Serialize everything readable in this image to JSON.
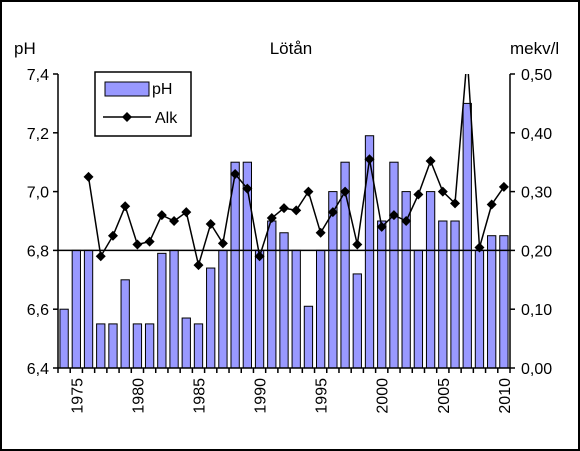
{
  "chart_data": {
    "type": "bar",
    "title": "Lötån",
    "ylabel_left": "pH",
    "ylabel_right": "mekv/l",
    "x": [
      1974,
      1975,
      1976,
      1977,
      1978,
      1979,
      1980,
      1981,
      1982,
      1983,
      1984,
      1985,
      1986,
      1987,
      1988,
      1989,
      1990,
      1991,
      1992,
      1993,
      1994,
      1995,
      1996,
      1997,
      1998,
      1999,
      2000,
      2001,
      2002,
      2003,
      2004,
      2005,
      2006,
      2007,
      2008,
      2009,
      2010
    ],
    "x_tick_labels": [
      "1975",
      "1980",
      "1985",
      "1990",
      "1995",
      "2000",
      "2005",
      "2010"
    ],
    "x_ticks": [
      1975,
      1980,
      1985,
      1990,
      1995,
      2000,
      2005,
      2010
    ],
    "y_left_range": [
      6.4,
      7.4
    ],
    "y_left_ticks": [
      "6,4",
      "6,6",
      "6,8",
      "7,0",
      "7,2",
      "7,4"
    ],
    "y_right_range": [
      0,
      0.5
    ],
    "y_right_ticks": [
      "0,00",
      "0,10",
      "0,20",
      "0,30",
      "0,40",
      "0,50"
    ],
    "reference_line_ph": 6.8,
    "legend_position": "top-left",
    "series": [
      {
        "name": "pH",
        "kind": "bar",
        "axis": "left",
        "color": "#9999ff",
        "values": [
          6.6,
          6.8,
          6.8,
          6.55,
          6.55,
          6.7,
          6.55,
          6.55,
          6.79,
          6.8,
          6.57,
          6.55,
          6.74,
          6.8,
          7.1,
          7.1,
          6.8,
          6.9,
          6.86,
          6.8,
          6.61,
          6.8,
          7.0,
          7.1,
          6.72,
          7.19,
          6.9,
          7.1,
          7.0,
          6.8,
          7.0,
          6.9,
          6.9,
          7.3,
          6.8,
          6.85,
          6.85
        ]
      },
      {
        "name": "Alk",
        "kind": "line",
        "axis": "right",
        "color": "#000000",
        "values": [
          null,
          null,
          0.325,
          0.19,
          0.225,
          0.275,
          0.21,
          0.215,
          0.26,
          0.25,
          0.265,
          0.175,
          0.245,
          0.212,
          0.33,
          0.305,
          0.19,
          0.255,
          0.272,
          0.268,
          0.3,
          0.23,
          0.265,
          0.3,
          0.21,
          0.355,
          0.24,
          0.26,
          0.25,
          0.295,
          0.352,
          0.3,
          0.28,
          0.53,
          0.205,
          0.278,
          0.308
        ]
      }
    ]
  }
}
